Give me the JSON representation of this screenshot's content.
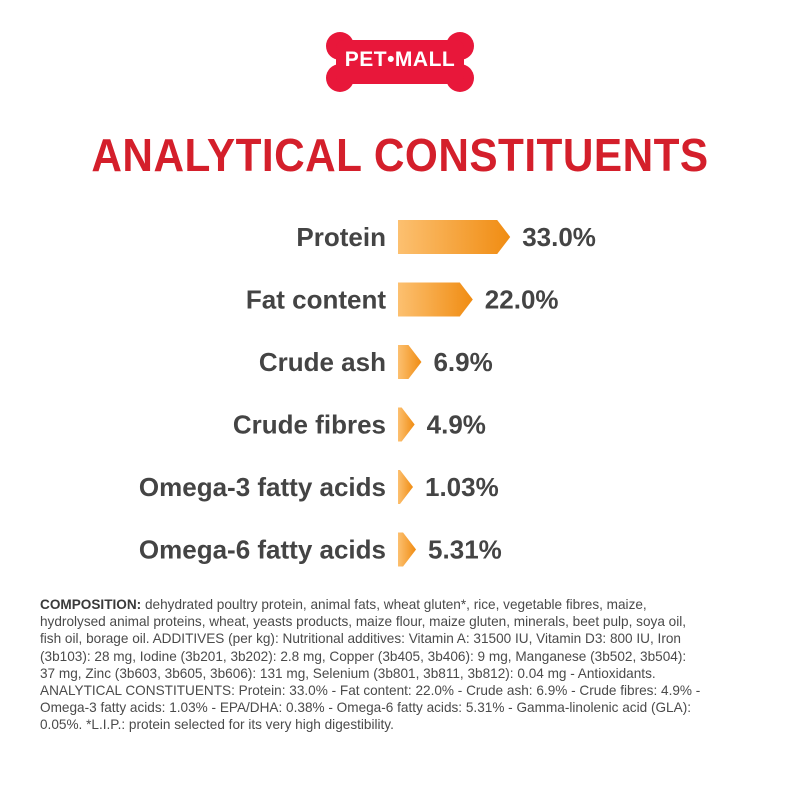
{
  "brand": {
    "logo_text": "PET•MALL",
    "logo_color": "#e8173a"
  },
  "title": "ANALYTICAL CONSTITUENTS",
  "colors": {
    "title": "#d41f2b",
    "bar_light": "#fcc070",
    "bar_dark": "#f08c12",
    "text": "#444444"
  },
  "chart_data": {
    "type": "bar",
    "orientation": "horizontal",
    "categories": [
      "Protein",
      "Fat content",
      "Crude ash",
      "Crude fibres",
      "Omega-3 fatty acids",
      "Omega-6 fatty acids"
    ],
    "values": [
      33.0,
      22.0,
      6.9,
      4.9,
      1.03,
      5.31
    ],
    "value_labels": [
      "33.0%",
      "22.0%",
      "6.9%",
      "4.9%",
      "1.03%",
      "5.31%"
    ],
    "title": "ANALYTICAL CONSTITUENTS",
    "grid": false,
    "legend": "none"
  },
  "composition": {
    "label": "COMPOSITION:",
    "lines": [
      " dehydrated poultry protein, animal fats, wheat gluten*, rice, vegetable fibres, maize,",
      "hydrolysed animal proteins, wheat, yeasts products, maize flour, maize gluten, minerals, beet pulp, soya oil,",
      "fish oil, borage oil. ADDITIVES (per kg): Nutritional additives: Vitamin A: 31500 IU, Vitamin D3: 800 IU, Iron",
      "(3b103): 28 mg, Iodine (3b201, 3b202): 2.8 mg, Copper (3b405, 3b406): 9 mg, Manganese (3b502, 3b504):",
      "37 mg, Zinc (3b603, 3b605, 3b606): 131 mg, Selenium (3b801, 3b811, 3b812): 0.04 mg - Antioxidants.",
      "ANALYTICAL CONSTITUENTS: Protein: 33.0% - Fat content: 22.0% - Crude ash: 6.9% - Crude fibres: 4.9% -",
      "Omega-3 fatty acids: 1.03% - EPA/DHA: 0.38% - Omega-6 fatty acids: 5.31% - Gamma-linolenic acid (GLA):",
      "0.05%. *L.I.P.: protein selected for its very high digestibility."
    ]
  }
}
